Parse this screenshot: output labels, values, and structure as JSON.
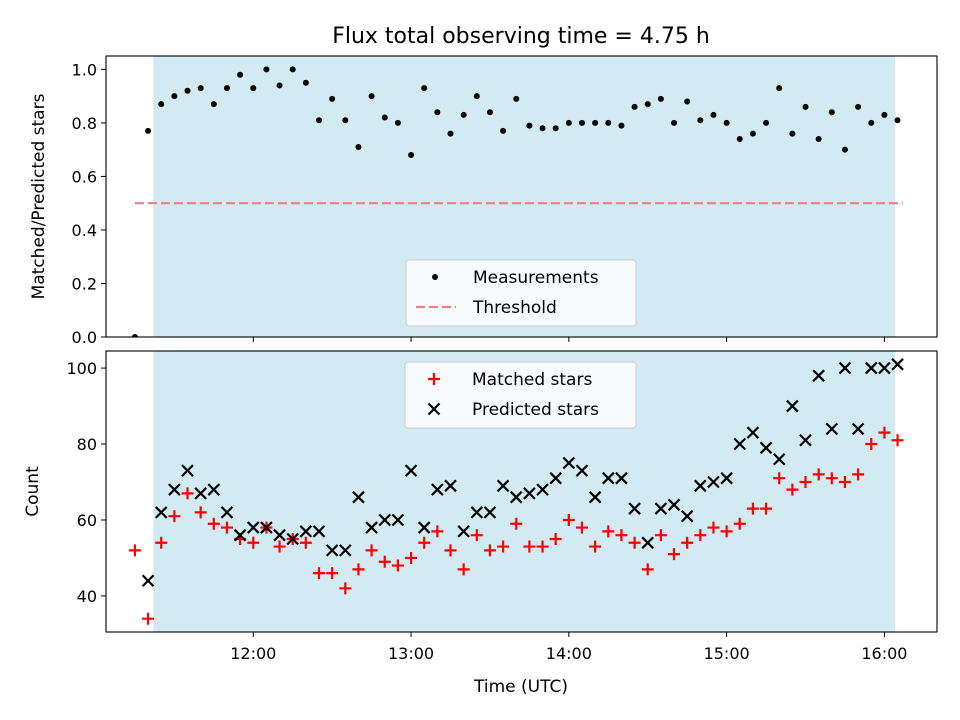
{
  "figure": {
    "title": "Flux total observing time = 4.75 h",
    "xlabel": "Time (UTC)",
    "x_ticks": [
      "12:00",
      "13:00",
      "14:00",
      "15:00",
      "16:00"
    ],
    "observing_window": {
      "start": "11:22",
      "end": "16:04",
      "color": "#add8e6"
    }
  },
  "chart_data": [
    {
      "type": "scatter",
      "ylabel": "Matched/Predicted stars",
      "xlim": [
        "11:04",
        "16:20"
      ],
      "ylim": [
        0,
        1.05
      ],
      "yticks": [
        "0.0",
        "0.2",
        "0.4",
        "0.6",
        "0.8",
        "1.0"
      ],
      "legend": {
        "placement": "lower-center"
      },
      "threshold": {
        "name": "Threshold",
        "value": 0.5,
        "color": "#f08080",
        "style": "dashed"
      },
      "series": [
        {
          "name": "Measurements",
          "color": "#000000",
          "marker": "dot",
          "points": [
            [
              "11:15",
              0.0
            ],
            [
              "11:20",
              0.77
            ],
            [
              "11:25",
              0.87
            ],
            [
              "11:30",
              0.9
            ],
            [
              "11:35",
              0.92
            ],
            [
              "11:40",
              0.93
            ],
            [
              "11:45",
              0.87
            ],
            [
              "11:50",
              0.93
            ],
            [
              "11:55",
              0.98
            ],
            [
              "12:00",
              0.93
            ],
            [
              "12:05",
              1.0
            ],
            [
              "12:10",
              0.94
            ],
            [
              "12:15",
              1.0
            ],
            [
              "12:20",
              0.95
            ],
            [
              "12:25",
              0.81
            ],
            [
              "12:30",
              0.89
            ],
            [
              "12:35",
              0.81
            ],
            [
              "12:40",
              0.71
            ],
            [
              "12:45",
              0.9
            ],
            [
              "12:50",
              0.82
            ],
            [
              "12:55",
              0.8
            ],
            [
              "13:00",
              0.68
            ],
            [
              "13:05",
              0.93
            ],
            [
              "13:10",
              0.84
            ],
            [
              "13:15",
              0.76
            ],
            [
              "13:20",
              0.83
            ],
            [
              "13:25",
              0.9
            ],
            [
              "13:30",
              0.84
            ],
            [
              "13:35",
              0.77
            ],
            [
              "13:40",
              0.89
            ],
            [
              "13:45",
              0.79
            ],
            [
              "13:50",
              0.78
            ],
            [
              "13:55",
              0.78
            ],
            [
              "14:00",
              0.8
            ],
            [
              "14:05",
              0.8
            ],
            [
              "14:10",
              0.8
            ],
            [
              "14:15",
              0.8
            ],
            [
              "14:20",
              0.79
            ],
            [
              "14:25",
              0.86
            ],
            [
              "14:30",
              0.87
            ],
            [
              "14:35",
              0.89
            ],
            [
              "14:40",
              0.8
            ],
            [
              "14:45",
              0.88
            ],
            [
              "14:50",
              0.81
            ],
            [
              "14:55",
              0.83
            ],
            [
              "15:00",
              0.8
            ],
            [
              "15:05",
              0.74
            ],
            [
              "15:10",
              0.76
            ],
            [
              "15:15",
              0.8
            ],
            [
              "15:20",
              0.93
            ],
            [
              "15:25",
              0.76
            ],
            [
              "15:30",
              0.86
            ],
            [
              "15:35",
              0.74
            ],
            [
              "15:40",
              0.84
            ],
            [
              "15:45",
              0.7
            ],
            [
              "15:50",
              0.86
            ],
            [
              "15:55",
              0.8
            ],
            [
              "16:00",
              0.83
            ],
            [
              "16:05",
              0.81
            ]
          ]
        }
      ]
    },
    {
      "type": "scatter",
      "ylabel": "Count",
      "xlim": [
        "11:04",
        "16:20"
      ],
      "ylim": [
        30.5,
        104.5
      ],
      "yticks": [
        "40",
        "60",
        "80",
        "100"
      ],
      "legend": {
        "placement": "top-center"
      },
      "series": [
        {
          "name": "Matched stars",
          "color": "#ff0000",
          "marker": "plus",
          "points": [
            [
              "11:15",
              52
            ],
            [
              "11:20",
              34
            ],
            [
              "11:25",
              54
            ],
            [
              "11:30",
              61
            ],
            [
              "11:35",
              67
            ],
            [
              "11:40",
              62
            ],
            [
              "11:45",
              59
            ],
            [
              "11:50",
              58
            ],
            [
              "11:55",
              55
            ],
            [
              "12:00",
              54
            ],
            [
              "12:05",
              58
            ],
            [
              "12:10",
              53
            ],
            [
              "12:15",
              55
            ],
            [
              "12:20",
              54
            ],
            [
              "12:25",
              46
            ],
            [
              "12:30",
              46
            ],
            [
              "12:35",
              42
            ],
            [
              "12:40",
              47
            ],
            [
              "12:45",
              52
            ],
            [
              "12:50",
              49
            ],
            [
              "12:55",
              48
            ],
            [
              "13:00",
              50
            ],
            [
              "13:05",
              54
            ],
            [
              "13:10",
              57
            ],
            [
              "13:15",
              52
            ],
            [
              "13:20",
              47
            ],
            [
              "13:25",
              56
            ],
            [
              "13:30",
              52
            ],
            [
              "13:35",
              53
            ],
            [
              "13:40",
              59
            ],
            [
              "13:45",
              53
            ],
            [
              "13:50",
              53
            ],
            [
              "13:55",
              55
            ],
            [
              "14:00",
              60
            ],
            [
              "14:05",
              58
            ],
            [
              "14:10",
              53
            ],
            [
              "14:15",
              57
            ],
            [
              "14:20",
              56
            ],
            [
              "14:25",
              54
            ],
            [
              "14:30",
              47
            ],
            [
              "14:35",
              56
            ],
            [
              "14:40",
              51
            ],
            [
              "14:45",
              54
            ],
            [
              "14:50",
              56
            ],
            [
              "14:55",
              58
            ],
            [
              "15:00",
              57
            ],
            [
              "15:05",
              59
            ],
            [
              "15:10",
              63
            ],
            [
              "15:15",
              63
            ],
            [
              "15:20",
              71
            ],
            [
              "15:25",
              68
            ],
            [
              "15:30",
              70
            ],
            [
              "15:35",
              72
            ],
            [
              "15:40",
              71
            ],
            [
              "15:45",
              70
            ],
            [
              "15:50",
              72
            ],
            [
              "15:55",
              80
            ],
            [
              "16:00",
              83
            ],
            [
              "16:05",
              81
            ]
          ]
        },
        {
          "name": "Predicted stars",
          "color": "#000000",
          "marker": "x",
          "points": [
            [
              "11:20",
              44
            ],
            [
              "11:25",
              62
            ],
            [
              "11:30",
              68
            ],
            [
              "11:35",
              73
            ],
            [
              "11:40",
              67
            ],
            [
              "11:45",
              68
            ],
            [
              "11:50",
              62
            ],
            [
              "11:55",
              56
            ],
            [
              "12:00",
              58
            ],
            [
              "12:05",
              58
            ],
            [
              "12:10",
              56
            ],
            [
              "12:15",
              55
            ],
            [
              "12:20",
              57
            ],
            [
              "12:25",
              57
            ],
            [
              "12:30",
              52
            ],
            [
              "12:35",
              52
            ],
            [
              "12:40",
              66
            ],
            [
              "12:45",
              58
            ],
            [
              "12:50",
              60
            ],
            [
              "12:55",
              60
            ],
            [
              "13:00",
              73
            ],
            [
              "13:05",
              58
            ],
            [
              "13:10",
              68
            ],
            [
              "13:15",
              69
            ],
            [
              "13:20",
              57
            ],
            [
              "13:25",
              62
            ],
            [
              "13:30",
              62
            ],
            [
              "13:35",
              69
            ],
            [
              "13:40",
              66
            ],
            [
              "13:45",
              67
            ],
            [
              "13:50",
              68
            ],
            [
              "13:55",
              71
            ],
            [
              "14:00",
              75
            ],
            [
              "14:05",
              73
            ],
            [
              "14:10",
              66
            ],
            [
              "14:15",
              71
            ],
            [
              "14:20",
              71
            ],
            [
              "14:25",
              63
            ],
            [
              "14:30",
              54
            ],
            [
              "14:35",
              63
            ],
            [
              "14:40",
              64
            ],
            [
              "14:45",
              61
            ],
            [
              "14:50",
              69
            ],
            [
              "14:55",
              70
            ],
            [
              "15:00",
              71
            ],
            [
              "15:05",
              80
            ],
            [
              "15:10",
              83
            ],
            [
              "15:15",
              79
            ],
            [
              "15:20",
              76
            ],
            [
              "15:25",
              90
            ],
            [
              "15:30",
              81
            ],
            [
              "15:35",
              98
            ],
            [
              "15:40",
              84
            ],
            [
              "15:45",
              100
            ],
            [
              "15:50",
              84
            ],
            [
              "15:55",
              100
            ],
            [
              "16:00",
              100
            ],
            [
              "16:05",
              101
            ]
          ]
        }
      ]
    }
  ]
}
